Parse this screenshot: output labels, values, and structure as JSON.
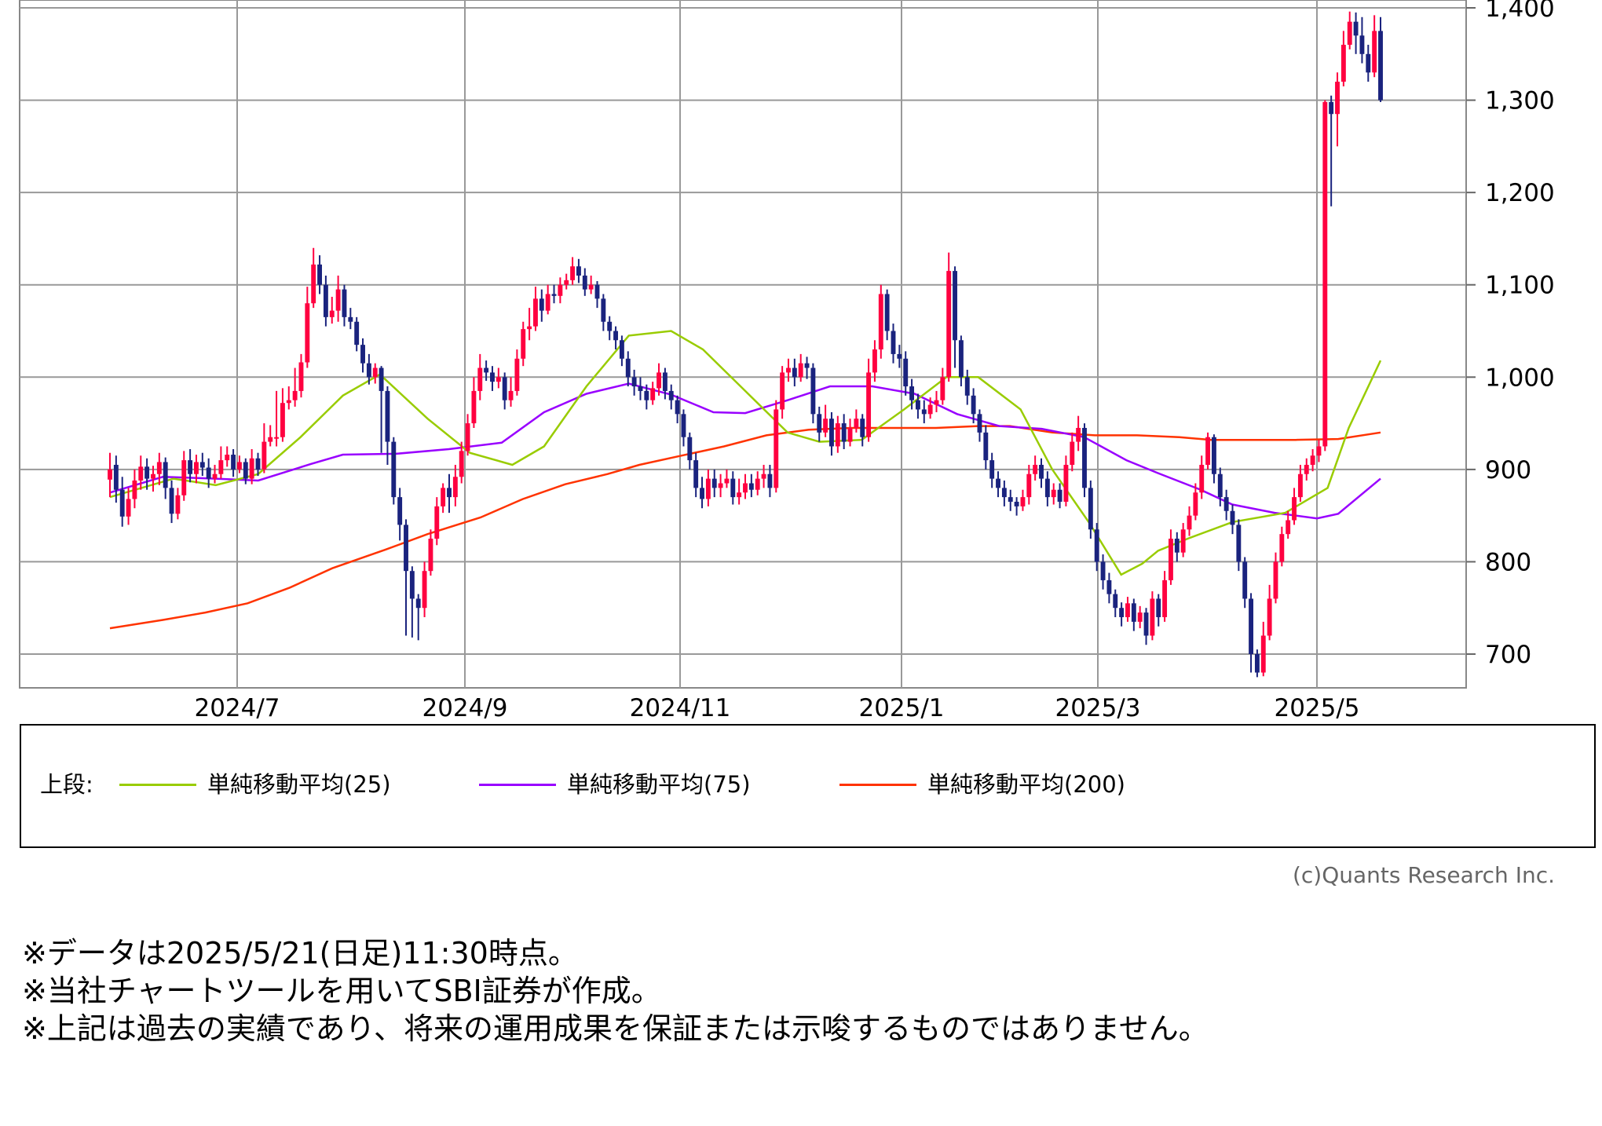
{
  "chart_data": {
    "type": "candlestick",
    "y_ticks": [
      "1,400",
      "1,300",
      "1,200",
      "1,100",
      "1,000",
      "900",
      "800",
      "700"
    ],
    "x_ticks": [
      "2024/7",
      "2024/9",
      "2024/11",
      "2025/1",
      "2025/3",
      "2025/5"
    ],
    "ylim": [
      670,
      1410
    ],
    "grid": true,
    "colors": {
      "up": "#ff0040",
      "down": "#1a237e"
    },
    "ma25": [
      [
        0,
        870
      ],
      [
        0.06,
        890
      ],
      [
        0.1,
        883
      ],
      [
        0.14,
        895
      ],
      [
        0.18,
        935
      ],
      [
        0.22,
        980
      ],
      [
        0.255,
        1003
      ],
      [
        0.3,
        955
      ],
      [
        0.34,
        918
      ],
      [
        0.38,
        905
      ],
      [
        0.41,
        925
      ],
      [
        0.45,
        990
      ],
      [
        0.49,
        1045
      ],
      [
        0.53,
        1050
      ],
      [
        0.56,
        1030
      ],
      [
        0.6,
        985
      ],
      [
        0.64,
        940
      ],
      [
        0.67,
        930
      ],
      [
        0.71,
        932
      ],
      [
        0.75,
        965
      ],
      [
        0.79,
        1000
      ],
      [
        0.82,
        1000
      ],
      [
        0.86,
        965
      ],
      [
        0.89,
        900
      ],
      [
        0.925,
        842
      ],
      [
        0.955,
        786
      ],
      [
        0.975,
        798
      ],
      [
        0.99,
        812
      ],
      [
        1.02,
        826
      ],
      [
        1.06,
        843
      ],
      [
        1.11,
        853
      ],
      [
        1.15,
        880
      ],
      [
        1.17,
        945
      ],
      [
        1.2,
        1018
      ]
    ],
    "ma75": [
      [
        0,
        875
      ],
      [
        0.05,
        892
      ],
      [
        0.1,
        890
      ],
      [
        0.14,
        888
      ],
      [
        0.19,
        906
      ],
      [
        0.22,
        916
      ],
      [
        0.27,
        917
      ],
      [
        0.32,
        922
      ],
      [
        0.37,
        929
      ],
      [
        0.41,
        962
      ],
      [
        0.45,
        982
      ],
      [
        0.49,
        993
      ],
      [
        0.53,
        981
      ],
      [
        0.57,
        962
      ],
      [
        0.6,
        961
      ],
      [
        0.64,
        975
      ],
      [
        0.68,
        990
      ],
      [
        0.72,
        990
      ],
      [
        0.76,
        982
      ],
      [
        0.8,
        960
      ],
      [
        0.84,
        947
      ],
      [
        0.88,
        944
      ],
      [
        0.92,
        935
      ],
      [
        0.96,
        910
      ],
      [
        0.99,
        896
      ],
      [
        1.03,
        878
      ],
      [
        1.06,
        862
      ],
      [
        1.1,
        853
      ],
      [
        1.14,
        847
      ],
      [
        1.16,
        852
      ],
      [
        1.2,
        890
      ]
    ],
    "ma200": [
      [
        0,
        728
      ],
      [
        0.05,
        737
      ],
      [
        0.09,
        745
      ],
      [
        0.13,
        755
      ],
      [
        0.17,
        772
      ],
      [
        0.21,
        793
      ],
      [
        0.26,
        813
      ],
      [
        0.3,
        830
      ],
      [
        0.35,
        848
      ],
      [
        0.39,
        868
      ],
      [
        0.43,
        884
      ],
      [
        0.47,
        895
      ],
      [
        0.5,
        905
      ],
      [
        0.54,
        915
      ],
      [
        0.58,
        925
      ],
      [
        0.62,
        937
      ],
      [
        0.66,
        943
      ],
      [
        0.7,
        945
      ],
      [
        0.74,
        945
      ],
      [
        0.78,
        945
      ],
      [
        0.82,
        947
      ],
      [
        0.85,
        947
      ],
      [
        0.89,
        940
      ],
      [
        0.93,
        937
      ],
      [
        0.97,
        937
      ],
      [
        1.01,
        935
      ],
      [
        1.04,
        932
      ],
      [
        1.08,
        932
      ],
      [
        1.12,
        932
      ],
      [
        1.16,
        933
      ],
      [
        1.2,
        940
      ]
    ],
    "candles": [
      [
        889,
        900,
        870,
        918
      ],
      [
        905,
        878,
        864,
        915
      ],
      [
        878,
        849,
        838,
        892
      ],
      [
        849,
        868,
        840,
        880
      ],
      [
        868,
        888,
        858,
        900
      ],
      [
        888,
        903,
        878,
        915
      ],
      [
        903,
        890,
        878,
        912
      ],
      [
        890,
        895,
        876,
        904
      ],
      [
        895,
        908,
        883,
        918
      ],
      [
        908,
        880,
        868,
        913
      ],
      [
        880,
        852,
        842,
        888
      ],
      [
        852,
        872,
        846,
        880
      ],
      [
        872,
        910,
        866,
        920
      ],
      [
        910,
        895,
        886,
        922
      ],
      [
        895,
        908,
        885,
        916
      ],
      [
        908,
        902,
        893,
        918
      ],
      [
        902,
        890,
        880,
        912
      ],
      [
        890,
        895,
        885,
        905
      ],
      [
        895,
        910,
        890,
        925
      ],
      [
        910,
        916,
        903,
        925
      ],
      [
        916,
        900,
        892,
        922
      ],
      [
        900,
        908,
        896,
        915
      ],
      [
        908,
        890,
        884,
        912
      ],
      [
        890,
        912,
        884,
        922
      ],
      [
        912,
        900,
        893,
        918
      ],
      [
        900,
        930,
        896,
        950
      ],
      [
        930,
        935,
        925,
        948
      ],
      [
        935,
        935,
        925,
        985
      ],
      [
        935,
        972,
        930,
        988
      ],
      [
        972,
        975,
        965,
        990
      ],
      [
        975,
        985,
        968,
        1010
      ],
      [
        985,
        1016,
        978,
        1025
      ],
      [
        1016,
        1080,
        1010,
        1098
      ],
      [
        1080,
        1122,
        1075,
        1140
      ],
      [
        1122,
        1100,
        1090,
        1132
      ],
      [
        1100,
        1065,
        1055,
        1110
      ],
      [
        1065,
        1072,
        1058,
        1087
      ],
      [
        1072,
        1095,
        1060,
        1110
      ],
      [
        1095,
        1065,
        1055,
        1100
      ],
      [
        1065,
        1060,
        1052,
        1075
      ],
      [
        1060,
        1035,
        1028,
        1065
      ],
      [
        1035,
        1015,
        1005,
        1042
      ],
      [
        1015,
        1000,
        992,
        1025
      ],
      [
        1000,
        1010,
        993,
        1015
      ],
      [
        1010,
        985,
        918,
        1012
      ],
      [
        985,
        930,
        905,
        990
      ],
      [
        930,
        870,
        862,
        935
      ],
      [
        870,
        840,
        823,
        880
      ],
      [
        840,
        790,
        720,
        846
      ],
      [
        790,
        760,
        718,
        795
      ],
      [
        760,
        750,
        715,
        765
      ],
      [
        750,
        790,
        740,
        800
      ],
      [
        790,
        825,
        785,
        835
      ],
      [
        825,
        860,
        818,
        870
      ],
      [
        860,
        880,
        853,
        885
      ],
      [
        880,
        870,
        853,
        895
      ],
      [
        870,
        892,
        860,
        905
      ],
      [
        892,
        920,
        885,
        930
      ],
      [
        920,
        950,
        915,
        960
      ],
      [
        950,
        985,
        945,
        1000
      ],
      [
        985,
        1010,
        975,
        1025
      ],
      [
        1010,
        1005,
        996,
        1018
      ],
      [
        1005,
        995,
        985,
        1012
      ],
      [
        995,
        1000,
        988,
        1010
      ],
      [
        1000,
        975,
        965,
        1005
      ],
      [
        975,
        985,
        968,
        1000
      ],
      [
        985,
        1020,
        980,
        1030
      ],
      [
        1020,
        1052,
        1012,
        1060
      ],
      [
        1052,
        1055,
        1040,
        1075
      ],
      [
        1055,
        1085,
        1050,
        1098
      ],
      [
        1085,
        1072,
        1060,
        1095
      ],
      [
        1072,
        1090,
        1068,
        1100
      ],
      [
        1090,
        1088,
        1080,
        1100
      ],
      [
        1088,
        1100,
        1080,
        1108
      ],
      [
        1100,
        1105,
        1095,
        1112
      ],
      [
        1105,
        1120,
        1100,
        1130
      ],
      [
        1120,
        1110,
        1102,
        1128
      ],
      [
        1110,
        1095,
        1088,
        1118
      ],
      [
        1095,
        1100,
        1090,
        1110
      ],
      [
        1100,
        1085,
        1075,
        1104
      ],
      [
        1085,
        1060,
        1050,
        1090
      ],
      [
        1060,
        1050,
        1040,
        1066
      ],
      [
        1050,
        1040,
        1030,
        1055
      ],
      [
        1040,
        1020,
        1012,
        1045
      ],
      [
        1020,
        1000,
        990,
        1028
      ],
      [
        1000,
        990,
        980,
        1008
      ],
      [
        990,
        985,
        975,
        1000
      ],
      [
        985,
        975,
        965,
        992
      ],
      [
        975,
        988,
        970,
        995
      ],
      [
        988,
        1005,
        980,
        1015
      ],
      [
        1005,
        985,
        976,
        1010
      ],
      [
        985,
        975,
        965,
        992
      ],
      [
        975,
        960,
        950,
        980
      ],
      [
        960,
        935,
        925,
        965
      ],
      [
        935,
        910,
        900,
        940
      ],
      [
        910,
        880,
        870,
        918
      ],
      [
        880,
        868,
        858,
        892
      ],
      [
        868,
        890,
        860,
        900
      ],
      [
        890,
        880,
        870,
        900
      ],
      [
        880,
        885,
        870,
        895
      ],
      [
        885,
        890,
        880,
        900
      ],
      [
        890,
        870,
        862,
        898
      ],
      [
        870,
        875,
        862,
        890
      ],
      [
        875,
        885,
        868,
        895
      ],
      [
        885,
        878,
        870,
        895
      ],
      [
        878,
        890,
        872,
        898
      ],
      [
        890,
        895,
        880,
        905
      ],
      [
        895,
        880,
        870,
        905
      ],
      [
        880,
        965,
        875,
        975
      ],
      [
        965,
        1005,
        955,
        1012
      ],
      [
        1005,
        1010,
        995,
        1020
      ],
      [
        1010,
        1000,
        990,
        1020
      ],
      [
        1000,
        1015,
        995,
        1025
      ],
      [
        1015,
        1010,
        998,
        1022
      ],
      [
        1010,
        960,
        950,
        1015
      ],
      [
        960,
        940,
        930,
        968
      ],
      [
        940,
        955,
        935,
        970
      ],
      [
        955,
        925,
        915,
        962
      ],
      [
        925,
        950,
        918,
        958
      ],
      [
        950,
        930,
        922,
        960
      ],
      [
        930,
        945,
        925,
        955
      ],
      [
        945,
        955,
        940,
        965
      ],
      [
        955,
        935,
        925,
        960
      ],
      [
        935,
        1005,
        930,
        1020
      ],
      [
        1005,
        1030,
        995,
        1040
      ],
      [
        1030,
        1090,
        1020,
        1100
      ],
      [
        1090,
        1050,
        1040,
        1095
      ],
      [
        1050,
        1025,
        1015,
        1058
      ],
      [
        1025,
        1020,
        1010,
        1035
      ],
      [
        1020,
        990,
        980,
        1028
      ],
      [
        990,
        975,
        965,
        998
      ],
      [
        975,
        965,
        955,
        982
      ],
      [
        965,
        960,
        950,
        975
      ],
      [
        960,
        970,
        955,
        978
      ],
      [
        970,
        975,
        962,
        985
      ],
      [
        975,
        1000,
        970,
        1010
      ],
      [
        1000,
        1115,
        995,
        1135
      ],
      [
        1115,
        1040,
        1010,
        1120
      ],
      [
        1040,
        1000,
        990,
        1045
      ],
      [
        1000,
        980,
        970,
        1008
      ],
      [
        980,
        960,
        950,
        988
      ],
      [
        960,
        940,
        930,
        965
      ],
      [
        940,
        910,
        900,
        948
      ],
      [
        910,
        890,
        880,
        918
      ],
      [
        890,
        880,
        870,
        898
      ],
      [
        880,
        870,
        860,
        888
      ],
      [
        870,
        865,
        855,
        878
      ],
      [
        865,
        860,
        850,
        870
      ],
      [
        860,
        870,
        855,
        878
      ],
      [
        870,
        895,
        862,
        905
      ],
      [
        895,
        905,
        888,
        915
      ],
      [
        905,
        890,
        880,
        912
      ],
      [
        890,
        870,
        860,
        898
      ],
      [
        870,
        878,
        862,
        885
      ],
      [
        878,
        865,
        858,
        885
      ],
      [
        865,
        905,
        860,
        915
      ],
      [
        905,
        930,
        898,
        940
      ],
      [
        930,
        945,
        920,
        958
      ],
      [
        945,
        880,
        870,
        950
      ],
      [
        880,
        835,
        825,
        888
      ],
      [
        835,
        800,
        790,
        842
      ],
      [
        800,
        780,
        770,
        808
      ],
      [
        780,
        765,
        755,
        788
      ],
      [
        765,
        750,
        740,
        770
      ],
      [
        750,
        740,
        730,
        756
      ],
      [
        740,
        755,
        735,
        762
      ],
      [
        755,
        735,
        725,
        760
      ],
      [
        735,
        745,
        728,
        752
      ],
      [
        745,
        720,
        710,
        750
      ],
      [
        720,
        760,
        715,
        768
      ],
      [
        760,
        740,
        730,
        765
      ],
      [
        740,
        780,
        735,
        790
      ],
      [
        780,
        825,
        775,
        835
      ],
      [
        825,
        810,
        800,
        832
      ],
      [
        810,
        835,
        805,
        842
      ],
      [
        835,
        850,
        828,
        860
      ],
      [
        850,
        875,
        845,
        885
      ],
      [
        875,
        905,
        868,
        915
      ],
      [
        905,
        935,
        900,
        940
      ],
      [
        935,
        895,
        885,
        938
      ],
      [
        895,
        870,
        860,
        902
      ],
      [
        870,
        855,
        845,
        878
      ],
      [
        855,
        840,
        830,
        862
      ],
      [
        840,
        800,
        790,
        846
      ],
      [
        800,
        760,
        750,
        805
      ],
      [
        760,
        700,
        680,
        766
      ],
      [
        700,
        680,
        675,
        705
      ],
      [
        680,
        720,
        676,
        735
      ],
      [
        720,
        760,
        715,
        775
      ],
      [
        760,
        800,
        755,
        810
      ],
      [
        800,
        830,
        795,
        838
      ],
      [
        830,
        845,
        825,
        855
      ],
      [
        845,
        870,
        840,
        880
      ],
      [
        870,
        895,
        865,
        905
      ],
      [
        895,
        905,
        888,
        912
      ],
      [
        905,
        915,
        898,
        922
      ],
      [
        915,
        925,
        908,
        932
      ],
      [
        925,
        1298,
        920,
        1300
      ],
      [
        1298,
        1285,
        1185,
        1305
      ],
      [
        1285,
        1320,
        1250,
        1330
      ],
      [
        1320,
        1360,
        1315,
        1375
      ],
      [
        1360,
        1385,
        1355,
        1396
      ],
      [
        1385,
        1370,
        1350,
        1395
      ],
      [
        1370,
        1350,
        1340,
        1390
      ],
      [
        1350,
        1330,
        1320,
        1360
      ],
      [
        1330,
        1375,
        1325,
        1392
      ],
      [
        1375,
        1300,
        1298,
        1390
      ]
    ]
  },
  "legend": {
    "prefix": "上段:",
    "items": [
      {
        "label": "単純移動平均(25)",
        "color": "#99cc00"
      },
      {
        "label": "単純移動平均(75)",
        "color": "#9900ff"
      },
      {
        "label": "単純移動平均(200)",
        "color": "#ff3300"
      }
    ]
  },
  "copyright": "(c)Quants Research Inc.",
  "notes": [
    "※データは2025/5/21(日足)11:30時点。",
    "※当社チャートツールを用いてSBI証券が作成。",
    "※上記は過去の実績であり、将来の運用成果を保証または示唆するものではありません。"
  ]
}
